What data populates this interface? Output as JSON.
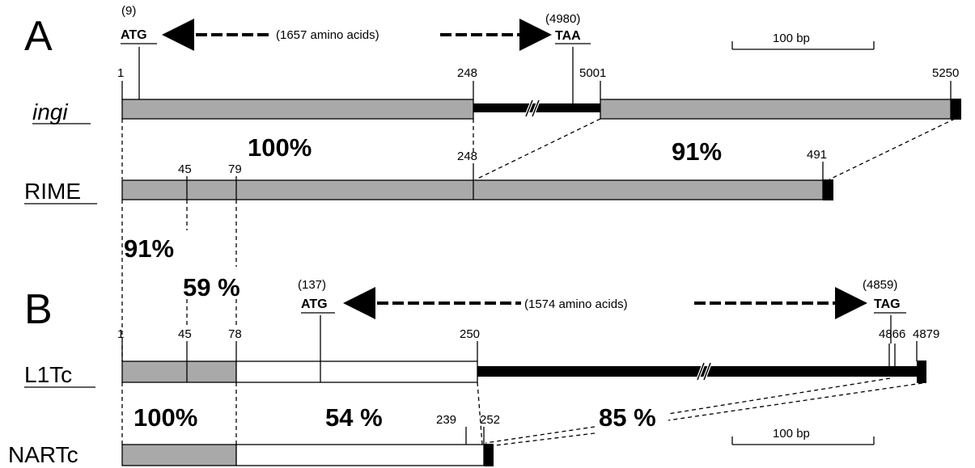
{
  "panels": {
    "a": {
      "letter": "A",
      "start_codon": {
        "pos": "(9)",
        "label": "ATG"
      },
      "stop_codon": {
        "pos": "(4980)",
        "label": "TAA"
      },
      "protein": "(1657 amino acids)",
      "scale": "100 bp",
      "tracks": {
        "ingi": {
          "name": "ingi",
          "ticks": [
            "1",
            "248",
            "5001",
            "5250"
          ]
        },
        "rime": {
          "name": "RIME",
          "ticks": [
            "45",
            "79",
            "248",
            "491"
          ]
        }
      },
      "identity": [
        "100%",
        "91%"
      ]
    },
    "between": {
      "identity": [
        "91%",
        "59 %"
      ]
    },
    "b": {
      "letter": "B",
      "start_codon": {
        "pos": "(137)",
        "label": "ATG"
      },
      "stop_codon": {
        "pos": "(4859)",
        "label": "TAG"
      },
      "protein": "(1574 amino acids)",
      "scale": "100 bp",
      "tracks": {
        "l1tc": {
          "name": "L1Tc",
          "ticks": [
            "1",
            "45",
            "78",
            "250",
            "4866",
            "4879"
          ]
        },
        "nartc": {
          "name": "NARTc",
          "ticks": [
            "239",
            "252"
          ]
        }
      },
      "identity": [
        "100%",
        "54 %",
        "85 %"
      ]
    }
  },
  "colors": {
    "gray_segment": "#a9a9a9",
    "black_segment": "#000000",
    "white_segment": "#ffffff"
  }
}
